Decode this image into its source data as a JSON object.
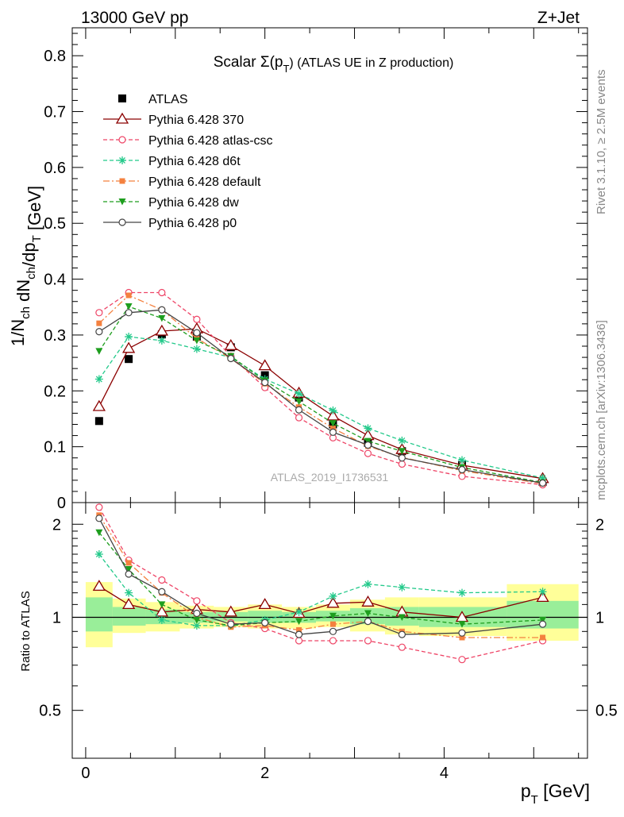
{
  "header": {
    "left": "13000 GeV pp",
    "right": "Z+Jet"
  },
  "side_labels": {
    "top": "Rivet 3.1.10, ≥ 2.5M events",
    "bottom": "mcplots.cern.ch [arXiv:1306.3436]"
  },
  "chart_data": [
    {
      "type": "line",
      "title": "Scalar Σ(p_T) (ATLAS UE in Z production)",
      "title_main": "Scalar Σ(p",
      "title_sub": "T",
      "title_tail": ") (ATLAS UE in Z production)",
      "ylabel": "1/N_ch dN_ch/dp_T [GeV]",
      "watermark": "ATLAS_2019_I1736531",
      "xlim": [
        -0.15,
        5.6
      ],
      "ylim": [
        0,
        0.85
      ],
      "yticks": [
        "0",
        "0.1",
        "0.2",
        "0.3",
        "0.4",
        "0.5",
        "0.6",
        "0.7",
        "0.8"
      ],
      "x": [
        0.15,
        0.48,
        0.85,
        1.24,
        1.62,
        2.0,
        2.38,
        2.76,
        3.15,
        3.53,
        4.2,
        5.1
      ],
      "series": [
        {
          "name": "ATLAS",
          "color": "#000000",
          "marker": "square",
          "line": "none",
          "values": [
            0.146,
            0.257,
            0.301,
            0.297,
            0.278,
            0.228,
            0.188,
            0.14,
            0.107,
            0.092,
            0.067,
            0.037
          ]
        },
        {
          "name": "Pythia 6.428 370",
          "color": "#8b0000",
          "marker": "triangle-open",
          "line": "solid",
          "values": [
            0.172,
            0.276,
            0.307,
            0.311,
            0.281,
            0.245,
            0.196,
            0.155,
            0.12,
            0.095,
            0.067,
            0.043
          ]
        },
        {
          "name": "Pythia 6.428 atlas-csc",
          "color": "#ee4466",
          "marker": "circle-open",
          "line": "dashed",
          "values": [
            0.34,
            0.376,
            0.376,
            0.328,
            0.262,
            0.206,
            0.152,
            0.116,
            0.088,
            0.069,
            0.047,
            0.032
          ]
        },
        {
          "name": "Pythia 6.428 d6t",
          "color": "#22c98a",
          "marker": "star",
          "line": "dashed",
          "values": [
            0.221,
            0.297,
            0.29,
            0.275,
            0.26,
            0.221,
            0.195,
            0.165,
            0.133,
            0.111,
            0.076,
            0.044
          ]
        },
        {
          "name": "Pythia 6.428 default",
          "color": "#f4813f",
          "marker": "square-small",
          "line": "dashdot",
          "values": [
            0.321,
            0.371,
            0.345,
            0.294,
            0.258,
            0.213,
            0.171,
            0.133,
            0.101,
            0.081,
            0.057,
            0.034
          ]
        },
        {
          "name": "Pythia 6.428 dw",
          "color": "#1e9e1e",
          "marker": "triangle-down",
          "line": "dashed",
          "values": [
            0.271,
            0.351,
            0.33,
            0.29,
            0.262,
            0.218,
            0.181,
            0.142,
            0.11,
            0.092,
            0.063,
            0.036
          ]
        },
        {
          "name": "Pythia 6.428 p0",
          "color": "#444444",
          "marker": "circle-open",
          "line": "solid",
          "values": [
            0.306,
            0.34,
            0.345,
            0.304,
            0.258,
            0.215,
            0.166,
            0.126,
            0.103,
            0.08,
            0.059,
            0.035
          ]
        }
      ]
    },
    {
      "type": "line",
      "ylabel": "Ratio to ATLAS",
      "xlabel": "p_T [GeV]",
      "xlabel_main": "p",
      "xlabel_sub": "T",
      "xlabel_tail": " [GeV]",
      "xlim": [
        -0.15,
        5.6
      ],
      "ylim": [
        0.35,
        2.35
      ],
      "xticks": [
        "0",
        "2",
        "4"
      ],
      "yticks": [
        "0.5",
        "1",
        "2"
      ],
      "bands": [
        {
          "x0": 0.0,
          "x1": 0.3,
          "yellow": [
            0.8,
            1.3
          ],
          "green": [
            0.9,
            1.16
          ]
        },
        {
          "x0": 0.3,
          "x1": 0.67,
          "yellow": [
            0.89,
            1.15
          ],
          "green": [
            0.94,
            1.08
          ]
        },
        {
          "x0": 0.67,
          "x1": 1.05,
          "yellow": [
            0.9,
            1.12
          ],
          "green": [
            0.95,
            1.06
          ]
        },
        {
          "x0": 1.05,
          "x1": 1.43,
          "yellow": [
            0.92,
            1.09
          ],
          "green": [
            0.96,
            1.04
          ]
        },
        {
          "x0": 1.43,
          "x1": 1.81,
          "yellow": [
            0.93,
            1.08
          ],
          "green": [
            0.97,
            1.04
          ]
        },
        {
          "x0": 1.81,
          "x1": 2.19,
          "yellow": [
            0.92,
            1.1
          ],
          "green": [
            0.96,
            1.05
          ]
        },
        {
          "x0": 2.19,
          "x1": 2.57,
          "yellow": [
            0.92,
            1.08
          ],
          "green": [
            0.96,
            1.04
          ]
        },
        {
          "x0": 2.57,
          "x1": 2.95,
          "yellow": [
            0.93,
            1.1
          ],
          "green": [
            0.97,
            1.05
          ]
        },
        {
          "x0": 2.95,
          "x1": 3.34,
          "yellow": [
            0.9,
            1.14
          ],
          "green": [
            0.95,
            1.07
          ]
        },
        {
          "x0": 3.34,
          "x1": 3.72,
          "yellow": [
            0.88,
            1.16
          ],
          "green": [
            0.94,
            1.08
          ]
        },
        {
          "x0": 3.72,
          "x1": 4.7,
          "yellow": [
            0.87,
            1.16
          ],
          "green": [
            0.93,
            1.08
          ]
        },
        {
          "x0": 4.7,
          "x1": 5.5,
          "yellow": [
            0.84,
            1.28
          ],
          "green": [
            0.92,
            1.13
          ]
        }
      ],
      "series": [
        {
          "name": "Pythia 6.428 370",
          "values": [
            1.26,
            1.1,
            1.04,
            1.06,
            1.04,
            1.1,
            1.03,
            1.11,
            1.12,
            1.04,
            1.0,
            1.16
          ]
        },
        {
          "name": "Pythia 6.428 atlas-csc",
          "values": [
            2.27,
            1.53,
            1.32,
            1.13,
            0.96,
            0.92,
            0.84,
            0.84,
            0.84,
            0.8,
            0.73,
            0.84
          ]
        },
        {
          "name": "Pythia 6.428 d6t",
          "values": [
            1.6,
            1.2,
            0.98,
            0.94,
            0.94,
            0.98,
            1.04,
            1.17,
            1.28,
            1.25,
            1.2,
            1.21
          ]
        },
        {
          "name": "Pythia 6.428 default",
          "values": [
            2.14,
            1.5,
            1.2,
            1.0,
            0.93,
            0.94,
            0.91,
            0.95,
            0.97,
            0.9,
            0.86,
            0.86
          ]
        },
        {
          "name": "Pythia 6.428 dw",
          "values": [
            1.88,
            1.43,
            1.1,
            0.98,
            0.94,
            0.96,
            0.97,
            1.01,
            1.03,
            1.0,
            0.95,
            0.98
          ]
        },
        {
          "name": "Pythia 6.428 p0",
          "values": [
            2.09,
            1.38,
            1.21,
            1.03,
            0.95,
            0.96,
            0.88,
            0.9,
            0.97,
            0.88,
            0.89,
            0.95
          ]
        }
      ]
    }
  ]
}
